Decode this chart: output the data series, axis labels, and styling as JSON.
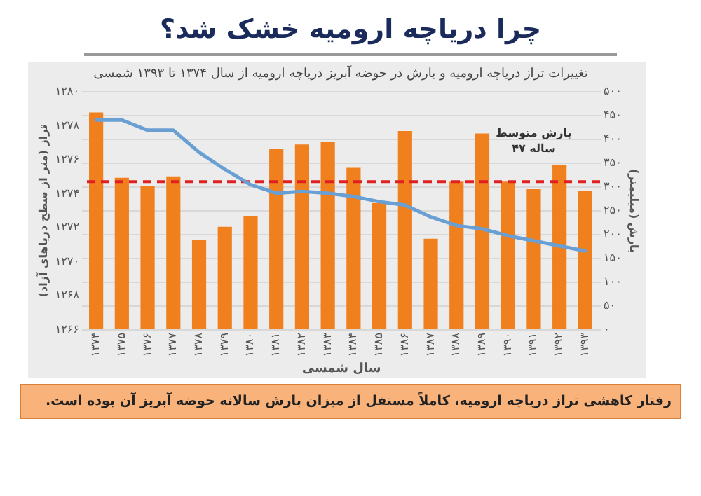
{
  "chart_data": {
    "type": "bar",
    "title": "چرا دریاچه ارومیه خشک شد؟",
    "subtitle": "تغییرات تراز دریاچه ارومیه و بارش در حوضه آبریز دریاچه ارومیه از سال ۱۳۷۴ تا ۱۳۹۳ شمسی",
    "xlabel": "سال شمسی",
    "ylabel": "تراز (متر از سطح دریاهای آزاد)",
    "y2label": "بارش (میلیمتر)",
    "categories": [
      "۱۳۷۴",
      "۱۳۷۵",
      "۱۳۷۶",
      "۱۳۷۷",
      "۱۳۷۸",
      "۱۳۷۹",
      "۱۳۸۰",
      "۱۳۸۱",
      "۱۳۸۲",
      "۱۳۸۳",
      "۱۳۸۴",
      "۱۳۸۵",
      "۱۳۸۶",
      "۱۳۸۷",
      "۱۳۸۸",
      "۱۳۸۹",
      "۱۳۹۰",
      "۱۳۹۱",
      "۱۳۹۲",
      "۱۳۹۳"
    ],
    "series": [
      {
        "axis": "y2",
        "color": "#f07f1e",
        "values": [
          455,
          318,
          301,
          321,
          187,
          215,
          237,
          378,
          388,
          393,
          339,
          265,
          416,
          190,
          310,
          411,
          310,
          294,
          344,
          290
        ]
      },
      {
        "type": "line",
        "axis": "y",
        "color": "#6a9fd4",
        "values": [
          1278.3,
          1278.3,
          1277.7,
          1277.7,
          1276.4,
          1275.4,
          1274.5,
          1274.0,
          1274.1,
          1274.0,
          1273.8,
          1273.5,
          1273.3,
          1272.6,
          1272.1,
          1271.9,
          1271.5,
          1271.2,
          1270.9,
          1270.6
        ]
      }
    ],
    "ylim": [
      1266,
      1280
    ],
    "yticks": [
      {
        "value": 1266,
        "label": "۱۲۶۶"
      },
      {
        "value": 1268,
        "label": "۱۲۶۸"
      },
      {
        "value": 1270,
        "label": "۱۲۷۰"
      },
      {
        "value": 1272,
        "label": "۱۲۷۲"
      },
      {
        "value": 1274,
        "label": "۱۲۷۴"
      },
      {
        "value": 1276,
        "label": "۱۲۷۶"
      },
      {
        "value": 1278,
        "label": "۱۲۷۸"
      },
      {
        "value": 1280,
        "label": "۱۲۸۰"
      }
    ],
    "y2lim": [
      0,
      500
    ],
    "y2ticks": [
      {
        "value": 0,
        "label": "۰"
      },
      {
        "value": 50,
        "label": "۵۰"
      },
      {
        "value": 100,
        "label": "۱۰۰"
      },
      {
        "value": 150,
        "label": "۱۵۰"
      },
      {
        "value": 200,
        "label": "۲۰۰"
      },
      {
        "value": 250,
        "label": "۲۵۰"
      },
      {
        "value": 300,
        "label": "۳۰۰"
      },
      {
        "value": 350,
        "label": "۳۵۰"
      },
      {
        "value": 400,
        "label": "۴۰۰"
      },
      {
        "value": 450,
        "label": "۴۵۰"
      },
      {
        "value": 500,
        "label": "۵۰۰"
      }
    ],
    "ref_lines": [
      {
        "axis": "y2",
        "value": 310,
        "label": "بارش متوسط\n۴۷ ساله",
        "color": "#e02020",
        "line_style": "dashed"
      }
    ],
    "grid": "y",
    "marker": "none",
    "annotations": [
      "رفتار کاهشی تراز دریاچه ارومیه، کاملاً مستقل از میزان بارش سالانه حوضه آبریز آن بوده است."
    ]
  }
}
